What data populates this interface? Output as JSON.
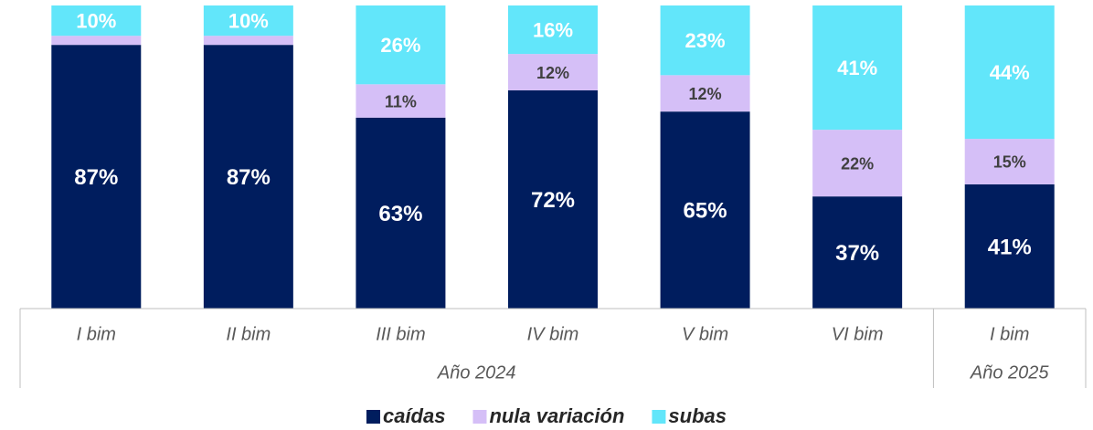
{
  "chart_data": {
    "type": "stacked_bar",
    "groups": [
      {
        "name": "Año 2024",
        "categories": [
          "I bim",
          "II bim",
          "III bim",
          "IV bim",
          "V bim",
          "VI bim"
        ]
      },
      {
        "name": "Año 2025",
        "categories": [
          "I bim"
        ]
      }
    ],
    "series": [
      {
        "name": "caídas",
        "color": "#001d5e",
        "values": [
          87,
          87,
          63,
          72,
          65,
          37,
          41
        ],
        "value_labels": [
          "87%",
          "87%",
          "63%",
          "72%",
          "65%",
          "37%",
          "41%"
        ]
      },
      {
        "name": "nula variación",
        "color": "#d5bff7",
        "values": [
          3,
          3,
          11,
          12,
          12,
          22,
          15
        ],
        "value_labels": [
          null,
          null,
          "11%",
          "12%",
          "12%",
          "22%",
          "15%"
        ]
      },
      {
        "name": "subas",
        "color": "#62e6fa",
        "values": [
          10,
          10,
          26,
          16,
          23,
          41,
          44
        ],
        "value_labels": [
          "10%",
          "10%",
          "26%",
          "16%",
          "23%",
          "41%",
          "44%"
        ]
      }
    ],
    "ylim": [
      0,
      100
    ]
  }
}
